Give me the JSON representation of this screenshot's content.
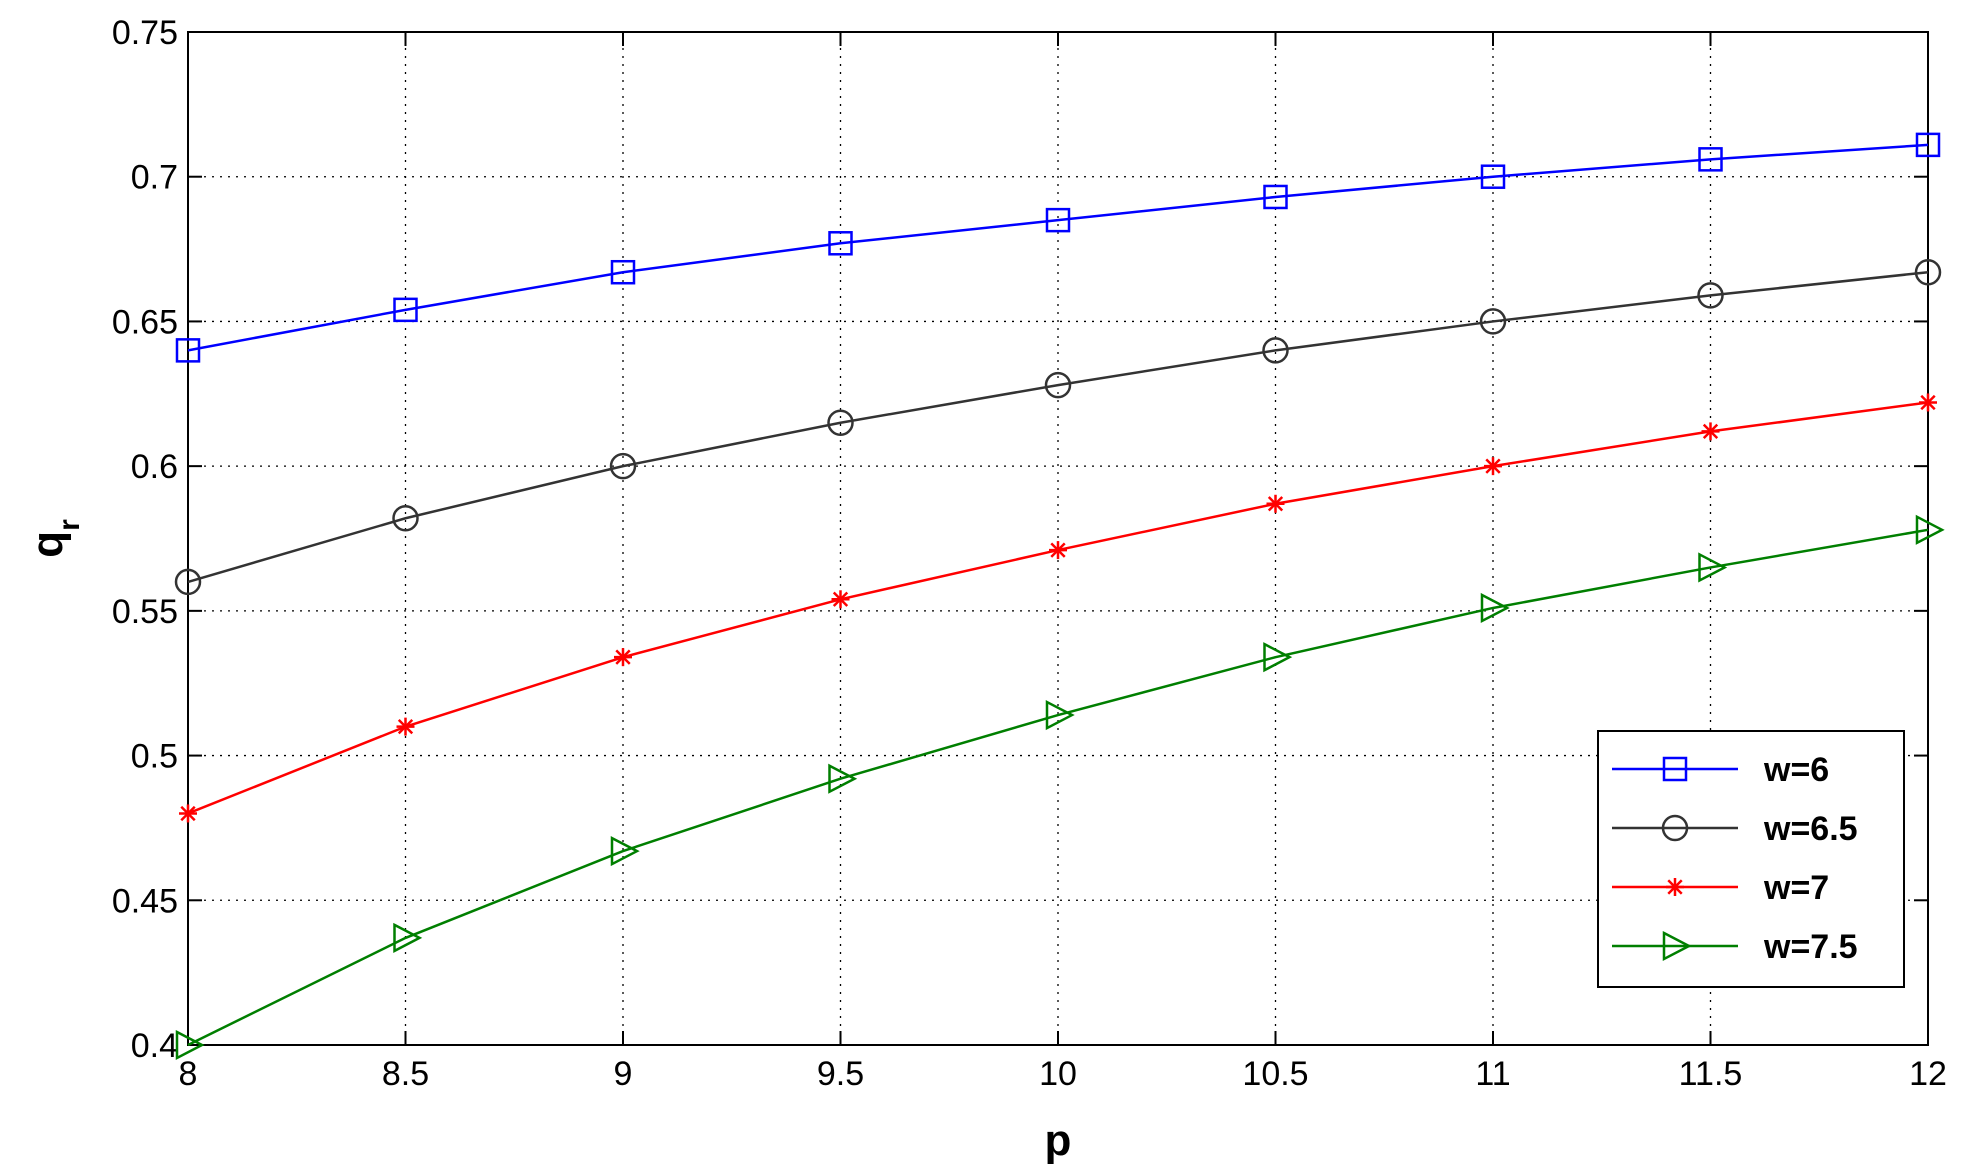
{
  "chart_data": {
    "type": "line",
    "xlabel": "p",
    "ylabel_main": "q",
    "ylabel_sub": "r",
    "xlim": [
      8,
      12
    ],
    "ylim": [
      0.4,
      0.75
    ],
    "x_ticks": [
      8,
      8.5,
      9,
      9.5,
      10,
      10.5,
      11,
      11.5,
      12
    ],
    "x_tick_labels": [
      "8",
      "8.5",
      "9",
      "9.5",
      "10",
      "10.5",
      "11",
      "11.5",
      "12"
    ],
    "y_ticks": [
      0.4,
      0.45,
      0.5,
      0.55,
      0.6,
      0.65,
      0.7,
      0.75
    ],
    "y_tick_labels": [
      "0.4",
      "0.45",
      "0.5",
      "0.55",
      "0.6",
      "0.65",
      "0.7",
      "0.75"
    ],
    "grid": true,
    "legend_position": "bottom-right",
    "x": [
      8,
      8.5,
      9,
      9.5,
      10,
      10.5,
      11,
      11.5,
      12
    ],
    "series": [
      {
        "name": "w=6",
        "color": "#0000ff",
        "marker": "square",
        "values": [
          0.64,
          0.654,
          0.667,
          0.677,
          0.685,
          0.693,
          0.7,
          0.706,
          0.711
        ]
      },
      {
        "name": "w=6.5",
        "color": "#333333",
        "marker": "circle",
        "values": [
          0.56,
          0.582,
          0.6,
          0.615,
          0.628,
          0.64,
          0.65,
          0.659,
          0.667
        ]
      },
      {
        "name": "w=7",
        "color": "#ff0000",
        "marker": "star",
        "values": [
          0.48,
          0.51,
          0.534,
          0.554,
          0.571,
          0.587,
          0.6,
          0.612,
          0.622
        ]
      },
      {
        "name": "w=7.5",
        "color": "#007f00",
        "marker": "triangle-right",
        "values": [
          0.4,
          0.437,
          0.467,
          0.492,
          0.514,
          0.534,
          0.551,
          0.565,
          0.578
        ]
      }
    ]
  }
}
